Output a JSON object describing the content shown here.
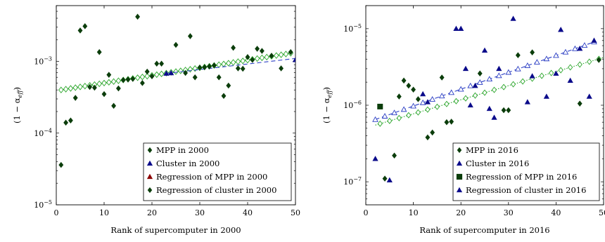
{
  "chart_data": [
    {
      "type": "scatter",
      "title": "",
      "xlabel": "Rank of supercomputer in 2000",
      "ylabel": "(1 − α_eff)",
      "ylabel_base": "(1 − α",
      "ylabel_sub": "eff",
      "ylabel_close": ")",
      "xlim": [
        0,
        50
      ],
      "ylim": [
        1e-05,
        0.006
      ],
      "yscale": "log",
      "xticks": [
        "0",
        "10",
        "20",
        "30",
        "40",
        "50"
      ],
      "ytick_base": "10",
      "yticks_exp": [
        "−5",
        "−4",
        "−3"
      ],
      "yticks_val": [
        1e-05,
        0.0001,
        0.001
      ],
      "legend_position": "bottom-right",
      "series": [
        {
          "name": "MPP in 2000",
          "marker": "diamond",
          "color": "#0b3d0b",
          "points": [
            [
              1,
              3.6e-05
            ],
            [
              2,
              0.00014
            ],
            [
              3,
              0.00015
            ],
            [
              4,
              0.00031
            ],
            [
              5,
              0.0027
            ],
            [
              6,
              0.0031
            ],
            [
              7,
              0.00044
            ],
            [
              8,
              0.00043
            ],
            [
              9,
              0.00135
            ],
            [
              10,
              0.00035
            ],
            [
              11,
              0.00065
            ],
            [
              12,
              0.00024
            ],
            [
              13,
              0.00042
            ],
            [
              14,
              0.00055
            ],
            [
              15,
              0.00056
            ],
            [
              16,
              0.00057
            ],
            [
              17,
              0.0042
            ],
            [
              18,
              0.0005
            ],
            [
              19,
              0.00072
            ],
            [
              20,
              0.00062
            ],
            [
              21,
              0.00093
            ],
            [
              22,
              0.00093
            ],
            [
              25,
              0.0017
            ],
            [
              27,
              0.00069
            ],
            [
              28,
              0.00225
            ],
            [
              29,
              0.0006
            ],
            [
              30,
              0.00082
            ],
            [
              31,
              0.00083
            ],
            [
              32,
              0.00085
            ],
            [
              33,
              0.00088
            ],
            [
              34,
              0.0006
            ],
            [
              35,
              0.00033
            ],
            [
              36,
              0.00046
            ],
            [
              37,
              0.00155
            ],
            [
              38,
              0.0008
            ],
            [
              39,
              0.00079
            ],
            [
              40,
              0.00115
            ],
            [
              41,
              0.00105
            ],
            [
              42,
              0.0015
            ],
            [
              43,
              0.0014
            ],
            [
              45,
              0.0012
            ],
            [
              47,
              0.0008
            ],
            [
              49,
              0.00135
            ]
          ]
        },
        {
          "name": "Cluster in 2000",
          "marker": "triangle",
          "color": "#0a0a8a",
          "points": [
            [
              23,
              0.00068
            ],
            [
              24,
              0.00069
            ],
            [
              50,
              0.00105
            ]
          ]
        },
        {
          "name": "Regression of MPP in 2000",
          "marker": "open-diamond-line",
          "color": "#8b0000",
          "legend_marker": "triangle",
          "line_color": "#2aa52a",
          "x_from": 1,
          "x_to": 49,
          "y_from": 0.0004,
          "y_to": 0.0013
        },
        {
          "name": "Regression of cluster in 2000",
          "marker": "dashed-line",
          "color": "#0b3d0b",
          "legend_marker": "diamond",
          "line_color": "#2c3fc4",
          "x_from": 23,
          "x_to": 50,
          "y_from": 0.00068,
          "y_to": 0.0011
        }
      ]
    },
    {
      "type": "scatter",
      "title": "",
      "xlabel": "Rank of supercomputer in 2016",
      "ylabel": "(1 − α_eff)",
      "ylabel_base": "(1 − α",
      "ylabel_sub": "eff",
      "ylabel_close": ")",
      "xlim": [
        0,
        50
      ],
      "ylim": [
        5e-08,
        2e-05
      ],
      "yscale": "log",
      "xticks": [
        "0",
        "10",
        "20",
        "30",
        "40",
        "50"
      ],
      "ytick_base": "10",
      "yticks_exp": [
        "−7",
        "−6",
        "−5"
      ],
      "yticks_val": [
        1e-07,
        1e-06,
        1e-05
      ],
      "legend_position": "bottom-right",
      "series": [
        {
          "name": "MPP in 2016",
          "marker": "diamond",
          "color": "#0b3d0b",
          "points": [
            [
              4,
              1.1e-07
            ],
            [
              6,
              2.2e-07
            ],
            [
              7,
              1.3e-06
            ],
            [
              8,
              2.1e-06
            ],
            [
              9,
              1.8e-06
            ],
            [
              10,
              1.6e-06
            ],
            [
              11,
              1.2e-06
            ],
            [
              13,
              3.8e-07
            ],
            [
              14,
              4.4e-07
            ],
            [
              16,
              2.3e-06
            ],
            [
              17,
              6e-07
            ],
            [
              18,
              6.1e-07
            ],
            [
              24,
              2.6e-06
            ],
            [
              29,
              8.6e-07
            ],
            [
              30,
              8.6e-07
            ],
            [
              32,
              4.5e-06
            ],
            [
              35,
              4.9e-06
            ],
            [
              45,
              1.05e-06
            ],
            [
              49,
              3.9e-06
            ]
          ]
        },
        {
          "name": "Cluster in 2016",
          "marker": "triangle",
          "color": "#0a0a8a",
          "points": [
            [
              2,
              2e-07
            ],
            [
              5,
              1.05e-07
            ],
            [
              12,
              1.4e-06
            ],
            [
              13,
              1.1e-06
            ],
            [
              19,
              1e-05
            ],
            [
              20,
              1e-05
            ],
            [
              21,
              3e-06
            ],
            [
              22,
              1e-06
            ],
            [
              23,
              1.8e-06
            ],
            [
              25,
              5.2e-06
            ],
            [
              26,
              9e-07
            ],
            [
              27,
              6.9e-07
            ],
            [
              28,
              3e-06
            ],
            [
              31,
              1.35e-05
            ],
            [
              34,
              1.1e-06
            ],
            [
              35,
              2.4e-06
            ],
            [
              38,
              1.3e-06
            ],
            [
              40,
              2.6e-06
            ],
            [
              41,
              9.7e-06
            ],
            [
              43,
              2.1e-06
            ],
            [
              45,
              5.5e-06
            ],
            [
              47,
              1.3e-06
            ],
            [
              48,
              7e-06
            ]
          ]
        },
        {
          "name": "Regression of MPP in 2016",
          "marker": "square",
          "color": "#0b3d0b",
          "legend_marker": "square",
          "line_color": "#2aa52a",
          "dotted": true,
          "x_from": 2,
          "x_to": 50,
          "y_from": 5.5e-07,
          "y_to": 4.2e-06,
          "extra_points": [
            [
              3,
              9.6e-07
            ]
          ]
        },
        {
          "name": "Regression of cluster in 2016",
          "marker": "triangle",
          "color": "#0a0a8a",
          "legend_marker": "triangle",
          "line_color": "#2c3fc4",
          "x_from": 2,
          "x_to": 48,
          "y_from": 6.5e-07,
          "y_to": 6.7e-06
        }
      ]
    }
  ]
}
